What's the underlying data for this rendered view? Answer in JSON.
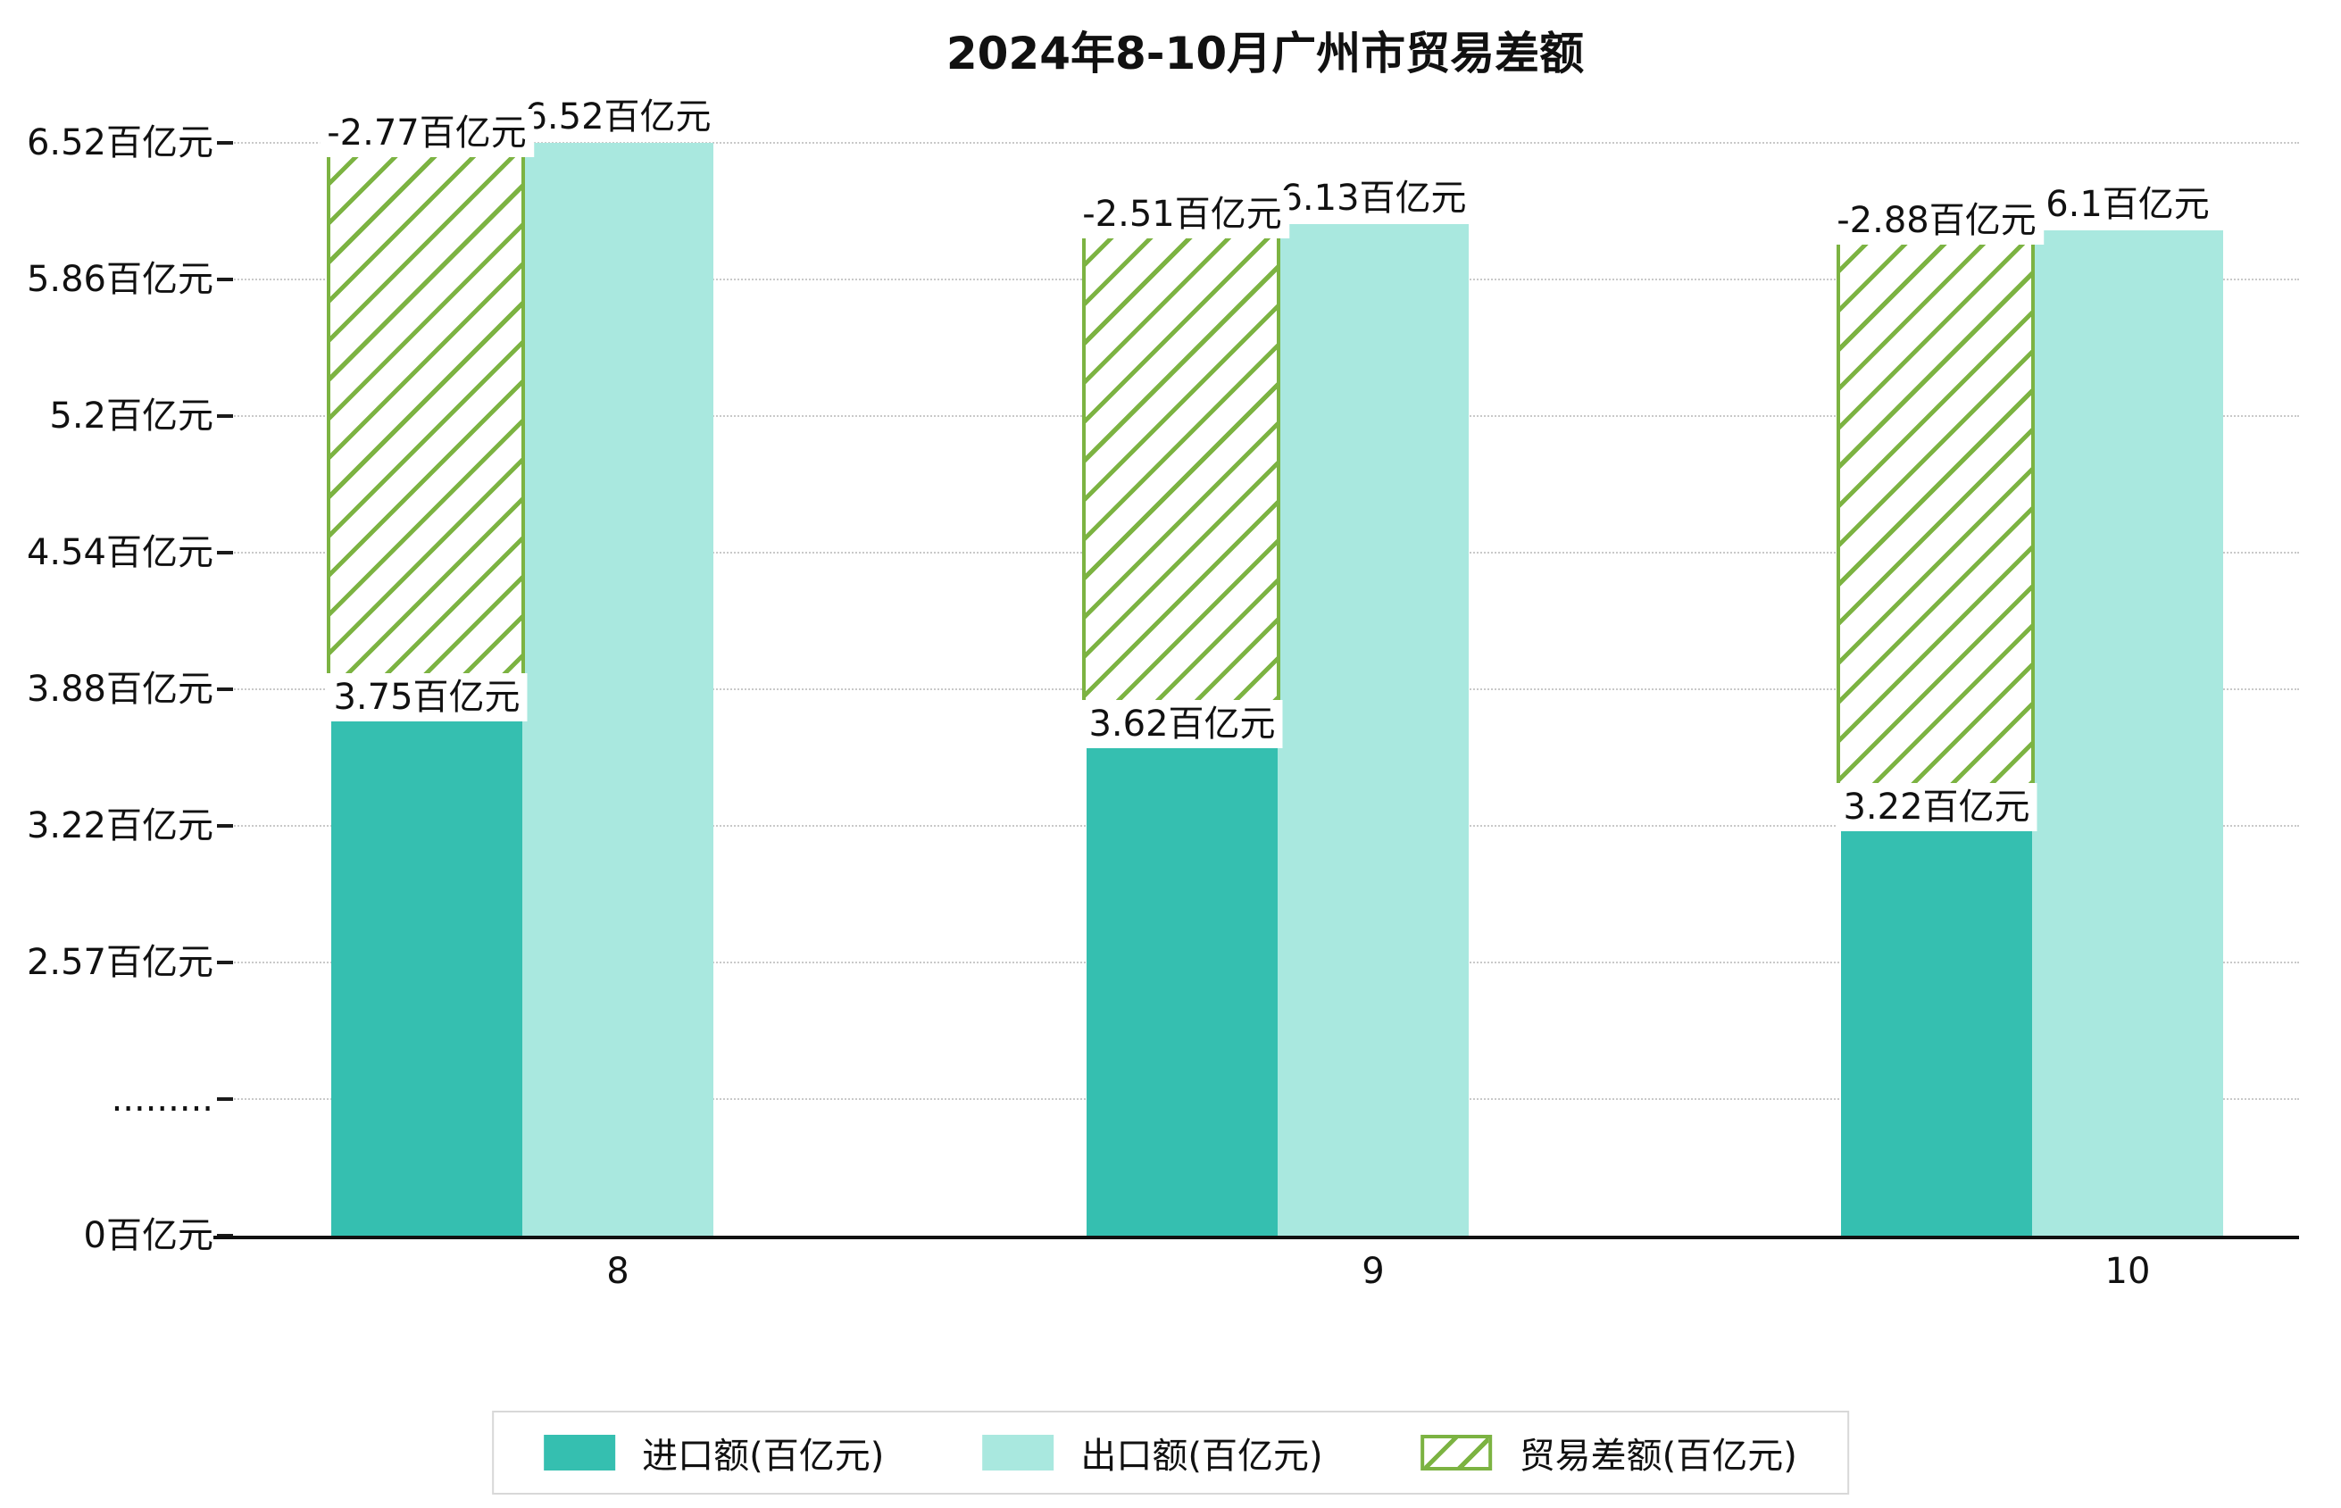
{
  "title": "2024年8-10月广州市贸易差额",
  "chart_data": {
    "type": "bar",
    "title": "2024年8-10月广州市贸易差额",
    "categories": [
      "8",
      "9",
      "10"
    ],
    "series": [
      {
        "name": "进口额(百亿元)",
        "type": "bar",
        "values": [
          3.75,
          3.62,
          3.22
        ],
        "labels": [
          "3.75百亿元",
          "3.62百亿元",
          "3.22百亿元"
        ],
        "color": "#35bfb0"
      },
      {
        "name": "出口额(百亿元)",
        "type": "bar",
        "values": [
          6.52,
          6.13,
          6.1
        ],
        "labels": [
          "6.52百亿元",
          "6.13百亿元",
          "6.1百亿元"
        ],
        "color": "#a9e8df"
      },
      {
        "name": "贸易差额(百亿元)",
        "type": "span-bar",
        "values": [
          -2.77,
          -2.51,
          -2.88
        ],
        "labels": [
          "-2.77百亿元",
          "-2.51百亿元",
          "-2.88百亿元"
        ],
        "color": "#7cb342",
        "hatch": "/",
        "spans": [
          [
            3.75,
            6.52
          ],
          [
            3.62,
            6.13
          ],
          [
            3.22,
            6.1
          ]
        ]
      }
    ],
    "y_axis": {
      "unit": "百亿元",
      "tick_labels": [
        "0百亿元",
        ".........",
        "2.57百亿元",
        "3.22百亿元",
        "3.88百亿元",
        "4.54百亿元",
        "5.2百亿元",
        "5.86百亿元",
        "6.52百亿元"
      ],
      "tick_values": [
        0,
        null,
        2.57,
        3.22,
        3.88,
        4.54,
        5.2,
        5.86,
        6.52
      ],
      "axis_break_between": [
        0,
        2.57
      ]
    },
    "grid": "dotted-horizontal",
    "legend_position": "bottom",
    "legend_entries": [
      "进口额(百亿元)",
      "出口额(百亿元)",
      "贸易差额(百亿元)"
    ],
    "colors": {
      "import": "#35bfb0",
      "export": "#a9e8df",
      "balance": "#7cb342",
      "grid": "#c9c9c9"
    }
  }
}
